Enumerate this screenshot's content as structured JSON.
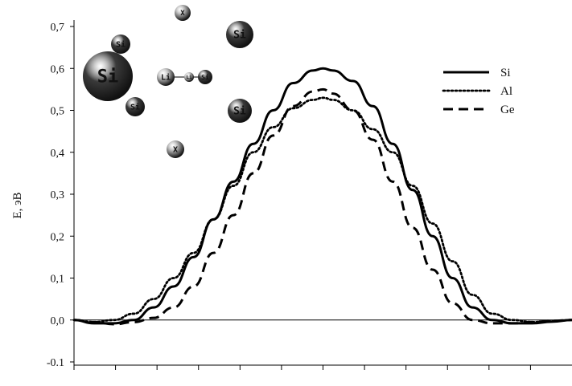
{
  "chart_data": {
    "type": "line",
    "title": "",
    "ylabel": "E, эВ",
    "xlabel": "",
    "ylim": [
      -0.1,
      0.7
    ],
    "xlim": [
      0,
      1
    ],
    "yticks": [
      "-0.1",
      "0,0",
      "0,1",
      "0,2",
      "0,3",
      "0,4",
      "0,5",
      "0,6",
      "0,7"
    ],
    "ytick_values": [
      -0.1,
      0.0,
      0.1,
      0.2,
      0.3,
      0.4,
      0.5,
      0.6,
      0.7
    ],
    "xtick_count": 12,
    "grid": false,
    "legend_position": "top-right",
    "series": [
      {
        "name": "Si",
        "style": "solid",
        "x": [
          0,
          0.04,
          0.08,
          0.12,
          0.16,
          0.2,
          0.24,
          0.28,
          0.32,
          0.36,
          0.4,
          0.44,
          0.48,
          0.5,
          0.52,
          0.56,
          0.6,
          0.64,
          0.68,
          0.72,
          0.76,
          0.8,
          0.84,
          0.88,
          0.92,
          0.96,
          1.0
        ],
        "y": [
          0.0,
          -0.008,
          -0.008,
          0.0,
          0.03,
          0.08,
          0.15,
          0.24,
          0.33,
          0.42,
          0.5,
          0.565,
          0.595,
          0.6,
          0.595,
          0.57,
          0.51,
          0.42,
          0.31,
          0.2,
          0.1,
          0.03,
          0.0,
          -0.008,
          -0.008,
          -0.004,
          0.0
        ]
      },
      {
        "name": "Al",
        "style": "dotted",
        "x": [
          0,
          0.04,
          0.08,
          0.12,
          0.16,
          0.2,
          0.24,
          0.28,
          0.32,
          0.36,
          0.4,
          0.44,
          0.48,
          0.5,
          0.52,
          0.56,
          0.6,
          0.64,
          0.68,
          0.72,
          0.76,
          0.8,
          0.84,
          0.88,
          0.92,
          0.96,
          1.0
        ],
        "y": [
          0.0,
          -0.005,
          0.0,
          0.015,
          0.05,
          0.1,
          0.16,
          0.24,
          0.32,
          0.4,
          0.46,
          0.505,
          0.525,
          0.53,
          0.525,
          0.5,
          0.455,
          0.4,
          0.32,
          0.23,
          0.14,
          0.06,
          0.015,
          0.0,
          -0.005,
          -0.003,
          0.0
        ]
      },
      {
        "name": "Ge",
        "style": "dashed",
        "x": [
          0,
          0.04,
          0.08,
          0.12,
          0.16,
          0.2,
          0.24,
          0.28,
          0.32,
          0.36,
          0.4,
          0.44,
          0.48,
          0.5,
          0.52,
          0.56,
          0.6,
          0.64,
          0.68,
          0.72,
          0.76,
          0.8,
          0.84,
          0.88,
          0.92,
          0.96,
          1.0
        ],
        "y": [
          0.0,
          -0.005,
          -0.01,
          -0.005,
          0.005,
          0.03,
          0.08,
          0.16,
          0.25,
          0.35,
          0.44,
          0.51,
          0.545,
          0.55,
          0.54,
          0.5,
          0.43,
          0.33,
          0.22,
          0.12,
          0.04,
          0.0,
          -0.008,
          -0.008,
          -0.005,
          -0.002,
          0.0
        ]
      }
    ]
  },
  "inset": {
    "atoms": [
      {
        "label": "Si",
        "color": "#3a3a3a"
      },
      {
        "label": "Si",
        "color": "#3a3a3a"
      },
      {
        "label": "Si",
        "color": "#3a3a3a"
      },
      {
        "label": "Si",
        "color": "#3a3a3a"
      },
      {
        "label": "Si",
        "color": "#3a3a3a"
      },
      {
        "label": "Li",
        "color": "#b8b8b8"
      },
      {
        "label": "Li",
        "color": "#b8b8b8"
      },
      {
        "label": "Si",
        "color": "#3a3a3a"
      },
      {
        "label": "X",
        "color": "#a6a6a6"
      },
      {
        "label": "X",
        "color": "#a6a6a6"
      }
    ]
  },
  "colors": {
    "line": "#000000",
    "axis": "#000000"
  }
}
